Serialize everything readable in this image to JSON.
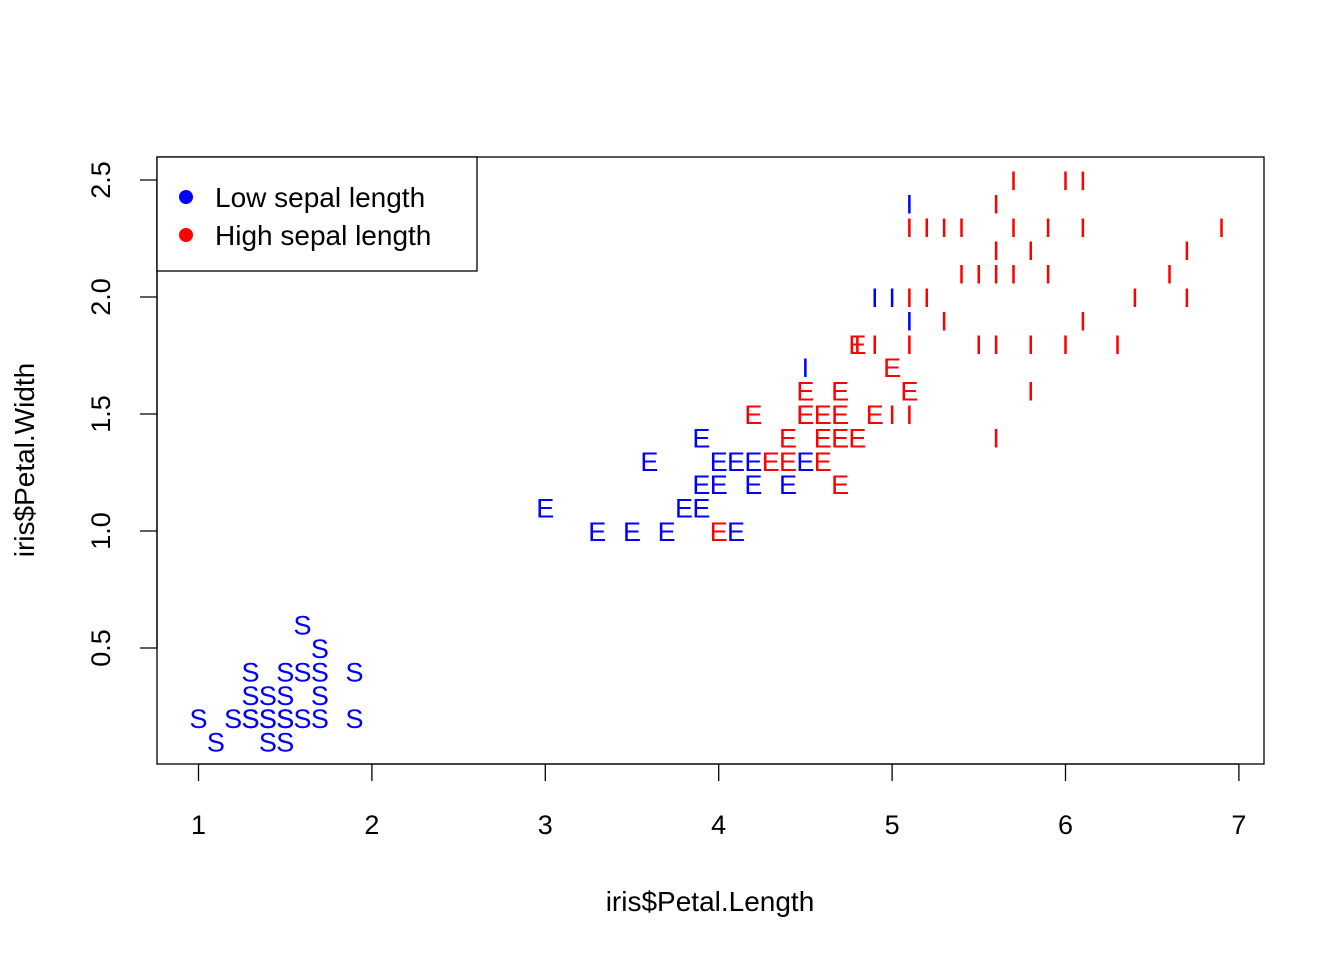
{
  "chart_data": {
    "type": "scatter",
    "title": "",
    "xlabel": "iris$Petal.Length",
    "ylabel": "iris$Petal.Width",
    "xlim": [
      0.8,
      7.1
    ],
    "ylim": [
      0.02,
      2.6
    ],
    "xticks": [
      "1",
      "2",
      "3",
      "4",
      "5",
      "6",
      "7"
    ],
    "yticks": [
      "0.5",
      "1.0",
      "1.5",
      "2.0",
      "2.5"
    ],
    "grid": false,
    "legend_position": "top-left",
    "legend": [
      {
        "label": "Low sepal length",
        "color": "#0000ff"
      },
      {
        "label": "High sepal length",
        "color": "#ff0000"
      }
    ],
    "colors": {
      "low": "#0000ff",
      "high": "#ff0000"
    },
    "series": [
      {
        "symbol": "S",
        "color": "#0000ff",
        "points": [
          [
            1.0,
            0.2
          ],
          [
            1.1,
            0.1
          ],
          [
            1.2,
            0.2
          ],
          [
            1.3,
            0.2
          ],
          [
            1.3,
            0.3
          ],
          [
            1.3,
            0.4
          ],
          [
            1.3,
            0.2
          ],
          [
            1.4,
            0.1
          ],
          [
            1.4,
            0.2
          ],
          [
            1.4,
            0.3
          ],
          [
            1.4,
            0.2
          ],
          [
            1.5,
            0.1
          ],
          [
            1.5,
            0.2
          ],
          [
            1.5,
            0.3
          ],
          [
            1.5,
            0.4
          ],
          [
            1.5,
            0.2
          ],
          [
            1.6,
            0.2
          ],
          [
            1.6,
            0.4
          ],
          [
            1.6,
            0.6
          ],
          [
            1.7,
            0.2
          ],
          [
            1.7,
            0.3
          ],
          [
            1.7,
            0.4
          ],
          [
            1.7,
            0.5
          ],
          [
            1.9,
            0.2
          ],
          [
            1.9,
            0.4
          ]
        ]
      },
      {
        "symbol": "E",
        "color": "#0000ff",
        "points": [
          [
            3.0,
            1.1
          ],
          [
            3.3,
            1.0
          ],
          [
            3.5,
            1.0
          ],
          [
            3.6,
            1.3
          ],
          [
            3.7,
            1.0
          ],
          [
            3.8,
            1.1
          ],
          [
            3.9,
            1.1
          ],
          [
            3.9,
            1.2
          ],
          [
            3.9,
            1.4
          ],
          [
            4.0,
            1.2
          ],
          [
            4.0,
            1.3
          ],
          [
            4.1,
            1.0
          ],
          [
            4.1,
            1.3
          ],
          [
            4.2,
            1.2
          ],
          [
            4.2,
            1.3
          ],
          [
            4.4,
            1.2
          ],
          [
            4.5,
            1.3
          ],
          [
            4.5,
            1.5
          ]
        ]
      },
      {
        "symbol": "E",
        "color": "#ff0000",
        "points": [
          [
            4.0,
            1.0
          ],
          [
            4.2,
            1.5
          ],
          [
            4.3,
            1.3
          ],
          [
            4.4,
            1.3
          ],
          [
            4.4,
            1.4
          ],
          [
            4.5,
            1.5
          ],
          [
            4.5,
            1.6
          ],
          [
            4.6,
            1.3
          ],
          [
            4.6,
            1.4
          ],
          [
            4.6,
            1.5
          ],
          [
            4.7,
            1.2
          ],
          [
            4.7,
            1.4
          ],
          [
            4.7,
            1.5
          ],
          [
            4.7,
            1.6
          ],
          [
            4.8,
            1.4
          ],
          [
            4.8,
            1.8
          ],
          [
            4.9,
            1.5
          ],
          [
            5.0,
            1.7
          ],
          [
            5.1,
            1.6
          ]
        ]
      },
      {
        "symbol": "I",
        "color": "#0000ff",
        "points": [
          [
            4.5,
            1.7
          ],
          [
            4.9,
            2.0
          ],
          [
            5.0,
            2.0
          ],
          [
            5.1,
            1.9
          ],
          [
            5.1,
            2.4
          ]
        ]
      },
      {
        "symbol": "I",
        "color": "#ff0000",
        "points": [
          [
            4.8,
            1.8
          ],
          [
            4.9,
            1.8
          ],
          [
            5.0,
            1.5
          ],
          [
            5.1,
            1.5
          ],
          [
            5.1,
            1.8
          ],
          [
            5.1,
            2.0
          ],
          [
            5.1,
            2.3
          ],
          [
            5.2,
            2.0
          ],
          [
            5.2,
            2.3
          ],
          [
            5.3,
            1.9
          ],
          [
            5.3,
            2.3
          ],
          [
            5.4,
            2.1
          ],
          [
            5.4,
            2.3
          ],
          [
            5.5,
            1.8
          ],
          [
            5.5,
            2.1
          ],
          [
            5.6,
            1.4
          ],
          [
            5.6,
            1.8
          ],
          [
            5.6,
            2.1
          ],
          [
            5.6,
            2.2
          ],
          [
            5.6,
            2.4
          ],
          [
            5.7,
            2.1
          ],
          [
            5.7,
            2.3
          ],
          [
            5.7,
            2.5
          ],
          [
            5.8,
            1.6
          ],
          [
            5.8,
            1.8
          ],
          [
            5.8,
            2.2
          ],
          [
            5.9,
            2.1
          ],
          [
            5.9,
            2.3
          ],
          [
            6.0,
            1.8
          ],
          [
            6.0,
            2.5
          ],
          [
            6.1,
            1.9
          ],
          [
            6.1,
            2.3
          ],
          [
            6.1,
            2.5
          ],
          [
            6.3,
            1.8
          ],
          [
            6.4,
            2.0
          ],
          [
            6.6,
            2.1
          ],
          [
            6.7,
            2.0
          ],
          [
            6.7,
            2.2
          ],
          [
            6.9,
            2.3
          ]
        ]
      }
    ]
  }
}
